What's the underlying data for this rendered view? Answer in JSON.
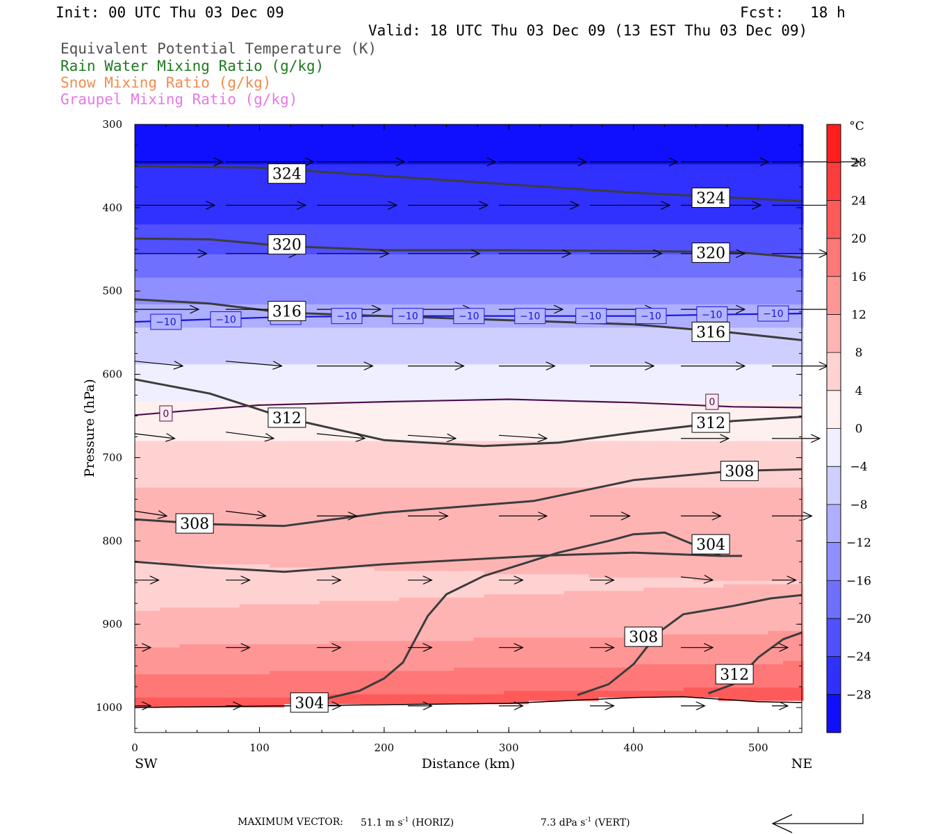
{
  "header": {
    "init": "Init: 00 UTC Thu 03 Dec 09",
    "fcst": "Fcst:   18 h",
    "valid": "Valid: 18 UTC Thu 03 Dec 09 (13 EST Thu 03 Dec 09)"
  },
  "legend": [
    {
      "label": "Equivalent Potential Temperature (K)",
      "color": "#505050"
    },
    {
      "label": "Rain Water Mixing Ratio (g/kg)",
      "color": "#1f7a1f"
    },
    {
      "label": "Snow Mixing Ratio (g/kg)",
      "color": "#f08c50"
    },
    {
      "label": "Graupel Mixing Ratio (g/kg)",
      "color": "#e678e6"
    }
  ],
  "chart_data": {
    "type": "heatmap",
    "xlabel": "Distance (km)",
    "ylabel": "Pressure (hPa)",
    "xlim": [
      0,
      535
    ],
    "ylim": [
      1030,
      300
    ],
    "x_ticks": [
      0,
      100,
      200,
      300,
      400,
      500
    ],
    "y_ticks": [
      300,
      400,
      500,
      600,
      700,
      800,
      900,
      1000
    ],
    "x_end_labels": {
      "left": "SW",
      "right": "NE"
    },
    "colorbar": {
      "unit": "°C",
      "min": -32,
      "max": 32,
      "ticks": [
        28,
        24,
        20,
        16,
        12,
        8,
        4,
        0,
        -4,
        -8,
        -12,
        -16,
        -20,
        -24,
        -28
      ]
    },
    "theta_e_contours": [
      {
        "value": 324,
        "points": [
          [
            0,
            350
          ],
          [
            100,
            352
          ],
          [
            200,
            362
          ],
          [
            300,
            372
          ],
          [
            400,
            382
          ],
          [
            535,
            392
          ]
        ],
        "label_at": [
          [
            122,
            359
          ],
          [
            462,
            388
          ]
        ]
      },
      {
        "value": 320,
        "points": [
          [
            0,
            437
          ],
          [
            60,
            438
          ],
          [
            120,
            446
          ],
          [
            200,
            451
          ],
          [
            300,
            451
          ],
          [
            400,
            452
          ],
          [
            480,
            453
          ],
          [
            535,
            460
          ]
        ],
        "label_at": [
          [
            122,
            444
          ],
          [
            462,
            454
          ]
        ]
      },
      {
        "value": 316,
        "points": [
          [
            0,
            510
          ],
          [
            60,
            515
          ],
          [
            120,
            526
          ],
          [
            200,
            530
          ],
          [
            300,
            535
          ],
          [
            400,
            540
          ],
          [
            480,
            550
          ],
          [
            535,
            559
          ]
        ],
        "label_at": [
          [
            122,
            524
          ],
          [
            462,
            549
          ]
        ]
      },
      {
        "value": 312,
        "points": [
          [
            0,
            606
          ],
          [
            60,
            623
          ],
          [
            120,
            652
          ],
          [
            200,
            679
          ],
          [
            280,
            686
          ],
          [
            340,
            682
          ],
          [
            400,
            670
          ],
          [
            480,
            656
          ],
          [
            535,
            651
          ]
        ],
        "label_at": [
          [
            122,
            652
          ],
          [
            462,
            658
          ]
        ]
      },
      {
        "value": 308,
        "points": [
          [
            0,
            774
          ],
          [
            60,
            780
          ],
          [
            120,
            782
          ],
          [
            200,
            766
          ],
          [
            320,
            752
          ],
          [
            400,
            727
          ],
          [
            480,
            716
          ],
          [
            535,
            714
          ]
        ],
        "label_at": [
          [
            48,
            779
          ],
          [
            485,
            716
          ]
        ]
      },
      {
        "value": 304,
        "points": [
          [
            0,
            825
          ],
          [
            60,
            832
          ],
          [
            120,
            837
          ],
          [
            200,
            828
          ],
          [
            320,
            818
          ],
          [
            400,
            814
          ],
          [
            470,
            818
          ],
          [
            487,
            818
          ]
        ],
        "label_at": [
          [
            462,
            804
          ]
        ]
      },
      {
        "value": 304,
        "points": [
          [
            140,
            994
          ],
          [
            180,
            980
          ],
          [
            200,
            965
          ],
          [
            215,
            946
          ],
          [
            235,
            890
          ],
          [
            250,
            864
          ],
          [
            280,
            842
          ],
          [
            340,
            814
          ],
          [
            380,
            800
          ],
          [
            400,
            792
          ],
          [
            425,
            790
          ],
          [
            470,
            818
          ]
        ],
        "label_at": [
          [
            140,
            994
          ]
        ]
      },
      {
        "value": 308,
        "points": [
          [
            355,
            985
          ],
          [
            380,
            972
          ],
          [
            400,
            948
          ],
          [
            420,
            910
          ],
          [
            440,
            888
          ],
          [
            480,
            878
          ],
          [
            510,
            869
          ],
          [
            535,
            865
          ]
        ],
        "label_at": [
          [
            408,
            915
          ]
        ]
      },
      {
        "value": 312,
        "points": [
          [
            460,
            983
          ],
          [
            480,
            972
          ],
          [
            500,
            940
          ],
          [
            520,
            918
          ],
          [
            535,
            910
          ]
        ],
        "label_at": [
          [
            481,
            960
          ]
        ]
      }
    ],
    "isotherm_lines": [
      {
        "value": -10,
        "points": [
          [
            0,
            537
          ],
          [
            60,
            534
          ],
          [
            120,
            531
          ],
          [
            200,
            530
          ],
          [
            300,
            530
          ],
          [
            400,
            530
          ],
          [
            480,
            528
          ],
          [
            535,
            527
          ]
        ],
        "label_at": [
          [
            25,
            537
          ],
          [
            73,
            534
          ],
          [
            121,
            531
          ],
          [
            170,
            530
          ],
          [
            219,
            530
          ],
          [
            268,
            530
          ],
          [
            317,
            530
          ],
          [
            366,
            530
          ],
          [
            414,
            530
          ],
          [
            463,
            528
          ],
          [
            512,
            527
          ]
        ]
      },
      {
        "value": 0,
        "points": [
          [
            0,
            649
          ],
          [
            40,
            644
          ],
          [
            100,
            637
          ],
          [
            200,
            633
          ],
          [
            300,
            630
          ],
          [
            400,
            634
          ],
          [
            480,
            639
          ],
          [
            535,
            640
          ]
        ],
        "label_at": [
          [
            25,
            647
          ],
          [
            463,
            633
          ]
        ]
      }
    ],
    "wind_vectors": {
      "x": [
        0,
        73,
        146,
        219,
        292,
        365,
        438,
        511
      ],
      "levels": [
        {
          "p": 345,
          "u": [
            55,
            55,
            55,
            55,
            55,
            55,
            55,
            55
          ],
          "v": [
            0,
            0,
            0,
            0,
            0,
            0,
            0,
            0
          ]
        },
        {
          "p": 397,
          "u": [
            50,
            50,
            50,
            50,
            50,
            50,
            50,
            40
          ],
          "v": [
            0,
            0,
            0,
            0,
            0,
            0,
            0,
            0
          ]
        },
        {
          "p": 455,
          "u": [
            45,
            45,
            45,
            45,
            45,
            45,
            40,
            35
          ],
          "v": [
            0,
            0,
            0,
            0,
            0,
            0,
            0,
            0
          ]
        },
        {
          "p": 522,
          "u": [
            40,
            40,
            40,
            40,
            40,
            40,
            40,
            40
          ],
          "v": [
            0,
            0,
            0,
            0,
            0,
            0,
            0,
            0
          ]
        },
        {
          "p": 590,
          "u": [
            30,
            35,
            35,
            35,
            35,
            40,
            40,
            35
          ],
          "v": [
            -3,
            -3,
            0,
            0,
            0,
            0,
            0,
            0
          ]
        },
        {
          "p": 677,
          "u": [
            25,
            30,
            30,
            30,
            30,
            0,
            30,
            30
          ],
          "v": [
            -3,
            -4,
            -3,
            -2,
            -2,
            0,
            0,
            0
          ]
        },
        {
          "p": 770,
          "u": [
            20,
            25,
            25,
            25,
            30,
            25,
            25,
            25
          ],
          "v": [
            -3,
            -3,
            0,
            0,
            0,
            0,
            0,
            0
          ]
        },
        {
          "p": 847,
          "u": [
            15,
            15,
            15,
            15,
            15,
            15,
            20,
            15
          ],
          "v": [
            0,
            0,
            0,
            0,
            0,
            0,
            -2,
            0
          ]
        },
        {
          "p": 928,
          "u": [
            10,
            15,
            15,
            15,
            15,
            15,
            20,
            10
          ],
          "v": [
            0,
            0,
            0,
            0,
            0,
            0,
            0,
            0
          ]
        },
        {
          "p": 998,
          "u": [
            10,
            10,
            15,
            15,
            15,
            15,
            15,
            10
          ],
          "v": [
            0,
            0,
            0,
            0,
            0,
            0,
            0,
            0
          ]
        }
      ]
    }
  },
  "footer": {
    "max_vector_label": "MAXIMUM VECTOR:",
    "horiz_value": "51.1 m s",
    "horiz_exp": "-1",
    "horiz_suffix": "(HORIZ)",
    "vert_value": "7.3 dPa s",
    "vert_exp": "-1",
    "vert_suffix": "(VERT)"
  }
}
